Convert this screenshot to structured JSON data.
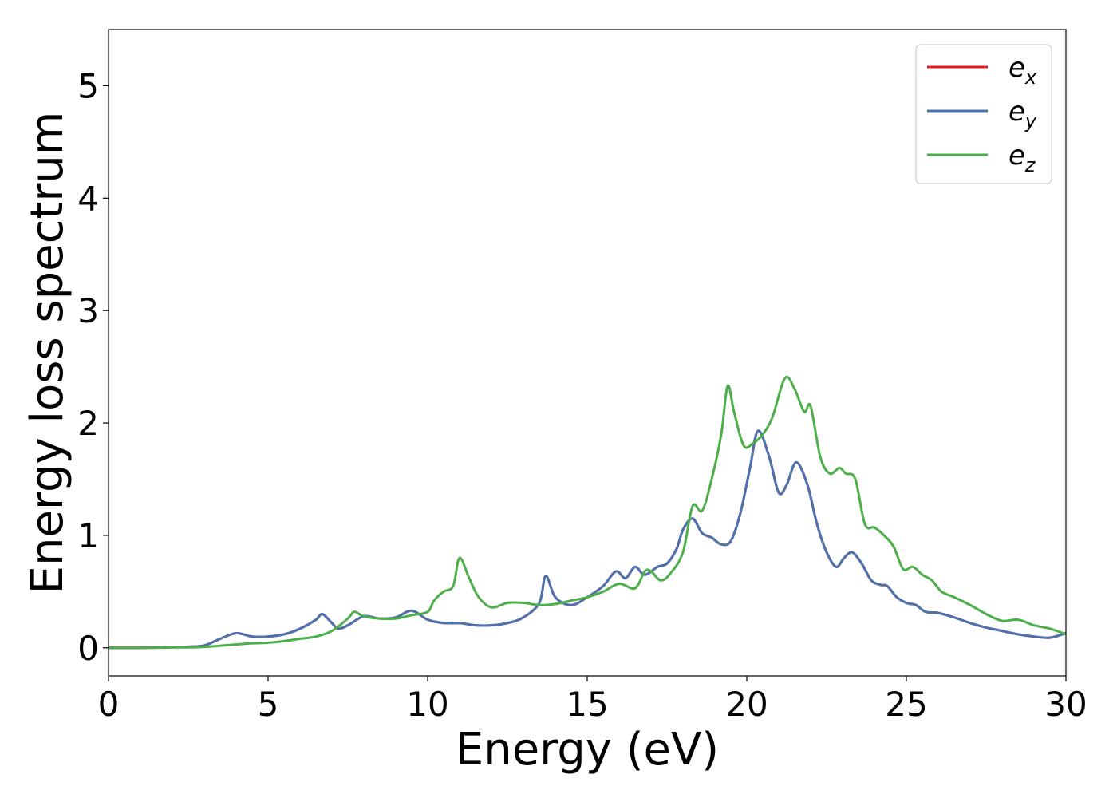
{
  "chart_data": {
    "type": "line",
    "xlabel": "Energy (eV)",
    "ylabel": "Energy loss spectrum",
    "xlim": [
      0,
      30
    ],
    "ylim": [
      -0.25,
      5.5
    ],
    "xticks": [
      0,
      5,
      10,
      15,
      20,
      25,
      30
    ],
    "yticks": [
      0,
      1,
      2,
      3,
      4,
      5
    ],
    "grid": false,
    "legend_position": "top-right",
    "series": [
      {
        "name": "e_x",
        "label_base": "e",
        "label_sub": "x",
        "color": "#e41a1c",
        "x": [
          0,
          1,
          2,
          2.5,
          3,
          3.5,
          4,
          4.5,
          5,
          5.5,
          6,
          6.5,
          6.7,
          7,
          7.2,
          7.5,
          8,
          8.5,
          9,
          9.5,
          10,
          10.5,
          11,
          11.5,
          12,
          12.5,
          13,
          13.5,
          13.7,
          14,
          14.5,
          15,
          15.5,
          15.9,
          16.2,
          16.5,
          16.8,
          17.2,
          17.5,
          17.8,
          18,
          18.3,
          18.6,
          18.9,
          19.2,
          19.5,
          19.8,
          20.1,
          20.35,
          20.7,
          21,
          21.25,
          21.55,
          21.9,
          22.2,
          22.5,
          22.8,
          23.05,
          23.3,
          23.6,
          23.9,
          24.2,
          24.4,
          24.7,
          25,
          25.3,
          25.6,
          26,
          26.5,
          27,
          27.5,
          28,
          28.5,
          29,
          29.5,
          30
        ],
        "y": [
          0,
          0,
          0.005,
          0.01,
          0.02,
          0.08,
          0.13,
          0.1,
          0.1,
          0.12,
          0.17,
          0.25,
          0.3,
          0.22,
          0.17,
          0.2,
          0.28,
          0.26,
          0.27,
          0.33,
          0.25,
          0.22,
          0.22,
          0.2,
          0.2,
          0.22,
          0.27,
          0.4,
          0.64,
          0.45,
          0.38,
          0.45,
          0.55,
          0.68,
          0.62,
          0.72,
          0.65,
          0.72,
          0.75,
          0.88,
          1.05,
          1.15,
          1.02,
          0.98,
          0.92,
          0.95,
          1.2,
          1.6,
          1.93,
          1.7,
          1.38,
          1.45,
          1.65,
          1.45,
          1.1,
          0.85,
          0.72,
          0.8,
          0.85,
          0.75,
          0.6,
          0.56,
          0.55,
          0.45,
          0.4,
          0.38,
          0.32,
          0.31,
          0.27,
          0.22,
          0.18,
          0.15,
          0.12,
          0.1,
          0.09,
          0.13
        ]
      },
      {
        "name": "e_y",
        "label_base": "e",
        "label_sub": "y",
        "color": "#4a73b0",
        "x": [
          0,
          1,
          2,
          2.5,
          3,
          3.5,
          4,
          4.5,
          5,
          5.5,
          6,
          6.5,
          6.7,
          7,
          7.2,
          7.5,
          8,
          8.5,
          9,
          9.5,
          10,
          10.5,
          11,
          11.5,
          12,
          12.5,
          13,
          13.5,
          13.7,
          14,
          14.5,
          15,
          15.5,
          15.9,
          16.2,
          16.5,
          16.8,
          17.2,
          17.5,
          17.8,
          18,
          18.3,
          18.6,
          18.9,
          19.2,
          19.5,
          19.8,
          20.1,
          20.35,
          20.7,
          21,
          21.25,
          21.55,
          21.9,
          22.2,
          22.5,
          22.8,
          23.05,
          23.3,
          23.6,
          23.9,
          24.2,
          24.4,
          24.7,
          25,
          25.3,
          25.6,
          26,
          26.5,
          27,
          27.5,
          28,
          28.5,
          29,
          29.5,
          30
        ],
        "y": [
          0,
          0,
          0.005,
          0.01,
          0.02,
          0.08,
          0.13,
          0.1,
          0.1,
          0.12,
          0.17,
          0.25,
          0.3,
          0.22,
          0.17,
          0.2,
          0.28,
          0.26,
          0.27,
          0.33,
          0.25,
          0.22,
          0.22,
          0.2,
          0.2,
          0.22,
          0.27,
          0.4,
          0.64,
          0.45,
          0.38,
          0.45,
          0.55,
          0.68,
          0.62,
          0.72,
          0.65,
          0.72,
          0.75,
          0.88,
          1.05,
          1.15,
          1.02,
          0.98,
          0.92,
          0.95,
          1.2,
          1.6,
          1.93,
          1.7,
          1.38,
          1.45,
          1.65,
          1.45,
          1.1,
          0.85,
          0.72,
          0.8,
          0.85,
          0.75,
          0.6,
          0.56,
          0.55,
          0.45,
          0.4,
          0.38,
          0.32,
          0.31,
          0.27,
          0.22,
          0.18,
          0.15,
          0.12,
          0.1,
          0.09,
          0.13
        ]
      },
      {
        "name": "e_z",
        "label_base": "e",
        "label_sub": "z",
        "color": "#4daf4a",
        "x": [
          0,
          1,
          2,
          3,
          4,
          4.5,
          5,
          5.5,
          6,
          6.5,
          7,
          7.5,
          7.7,
          8,
          8.5,
          9,
          9.5,
          10,
          10.2,
          10.5,
          10.8,
          11,
          11.3,
          11.6,
          12,
          12.5,
          13,
          13.5,
          14,
          14.5,
          15,
          15.5,
          16,
          16.5,
          16.8,
          17,
          17.3,
          17.6,
          18,
          18.3,
          18.6,
          18.9,
          19.2,
          19.4,
          19.6,
          19.9,
          20.2,
          20.5,
          20.8,
          21.2,
          21.5,
          21.8,
          22,
          22.3,
          22.6,
          22.9,
          23.1,
          23.4,
          23.7,
          24,
          24.3,
          24.6,
          24.9,
          25.2,
          25.5,
          25.8,
          26.1,
          26.5,
          27,
          27.5,
          28,
          28.5,
          29,
          29.5,
          30
        ],
        "y": [
          0,
          0,
          0.003,
          0.008,
          0.03,
          0.04,
          0.045,
          0.06,
          0.08,
          0.1,
          0.15,
          0.26,
          0.32,
          0.28,
          0.26,
          0.26,
          0.29,
          0.32,
          0.42,
          0.5,
          0.55,
          0.8,
          0.62,
          0.45,
          0.36,
          0.4,
          0.4,
          0.38,
          0.39,
          0.42,
          0.45,
          0.5,
          0.57,
          0.53,
          0.68,
          0.68,
          0.6,
          0.66,
          0.85,
          1.26,
          1.22,
          1.5,
          1.9,
          2.33,
          2.1,
          1.8,
          1.82,
          1.9,
          2.05,
          2.4,
          2.3,
          2.1,
          2.15,
          1.7,
          1.55,
          1.6,
          1.55,
          1.5,
          1.1,
          1.07,
          1.0,
          0.9,
          0.7,
          0.72,
          0.65,
          0.6,
          0.5,
          0.45,
          0.38,
          0.3,
          0.24,
          0.25,
          0.2,
          0.17,
          0.12
        ]
      }
    ]
  }
}
